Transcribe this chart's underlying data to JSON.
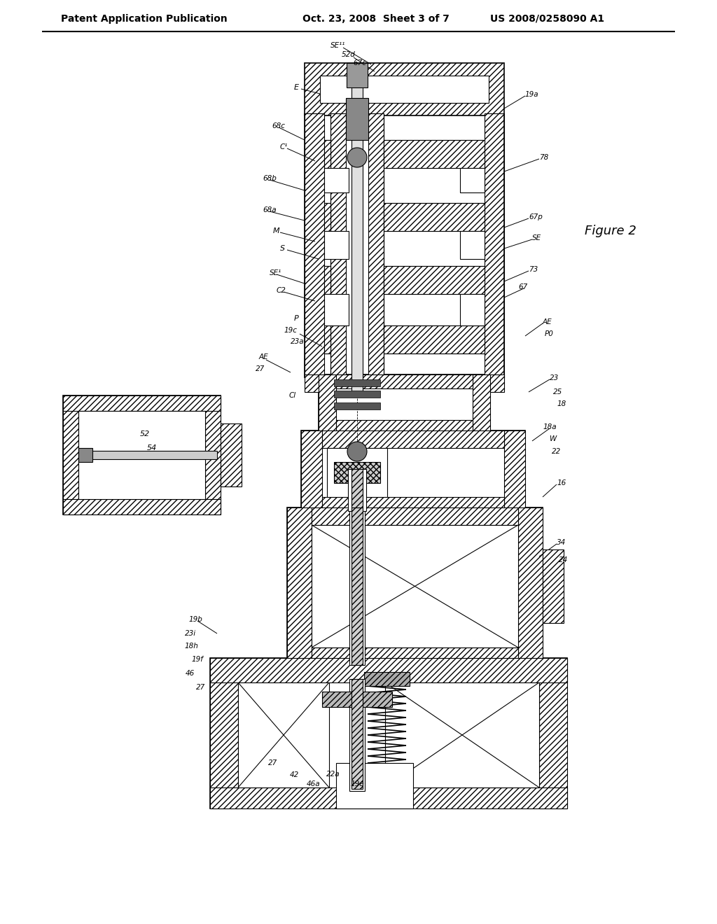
{
  "background_color": "#ffffff",
  "header_left": "Patent Application Publication",
  "header_center": "Oct. 23, 2008  Sheet 3 of 7",
  "header_right": "US 2008/0258090 A1",
  "figure_label": "Figure 2",
  "line_color": "#000000"
}
